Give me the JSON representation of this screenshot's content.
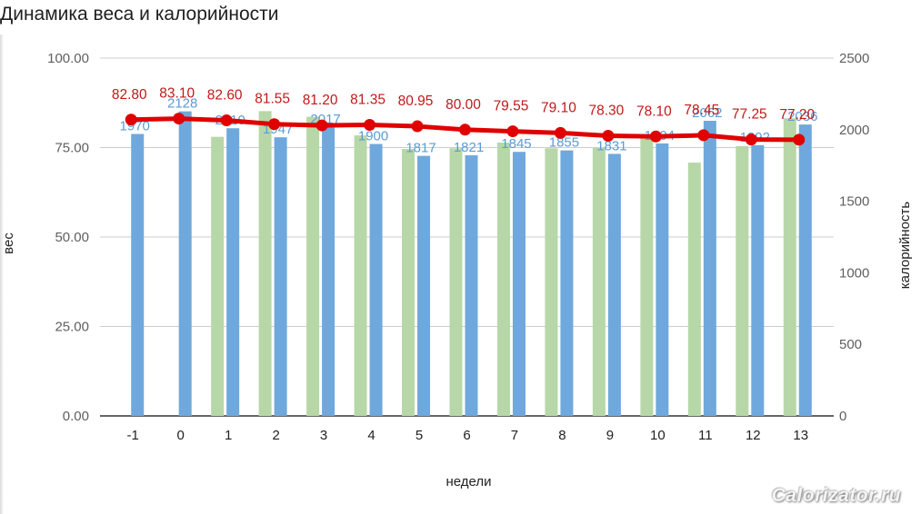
{
  "chart_data": {
    "type": "bar",
    "title": "Динамика веса и калорийности",
    "xlabel": "недели",
    "ylabel": "вес",
    "y2label": "калорийность",
    "categories": [
      "-1",
      "0",
      "1",
      "2",
      "3",
      "4",
      "5",
      "6",
      "7",
      "8",
      "9",
      "10",
      "11",
      "12",
      "13"
    ],
    "ylim": [
      0,
      100
    ],
    "y2lim": [
      0,
      2500
    ],
    "yticks": [
      "0.00",
      "25.00",
      "50.00",
      "75.00",
      "100.00"
    ],
    "y2ticks": [
      "0",
      "500",
      "1000",
      "1500",
      "2000",
      "2500"
    ],
    "colors": {
      "green_bar": "#b7d7a8",
      "blue_bar": "#6fa8dc",
      "line": "#e00000",
      "line_label": "#c21818",
      "blue_label": "#5b9bd5"
    },
    "series": [
      {
        "type": "bar",
        "axis": "right",
        "values": [
          null,
          null,
          1950,
          2130,
          2090,
          1960,
          1865,
          1870,
          1910,
          1870,
          1875,
          1960,
          1770,
          1885,
          2080
        ],
        "labels": [
          "",
          "",
          "",
          "",
          "",
          "",
          "",
          "",
          "",
          "",
          "",
          "",
          "",
          "",
          ""
        ]
      },
      {
        "type": "bar",
        "axis": "right",
        "values": [
          1970,
          2128,
          2010,
          1947,
          2017,
          1900,
          1817,
          1821,
          1845,
          1855,
          1831,
          1904,
          2062,
          1892,
          2036
        ],
        "labels": [
          "1970",
          "2128",
          "2010",
          "1947",
          "2017",
          "1900",
          "1817",
          "1821",
          "1845",
          "1855",
          "1831",
          "1904",
          "2062",
          "1892",
          "2036"
        ]
      },
      {
        "type": "line",
        "axis": "left",
        "values": [
          82.8,
          83.1,
          82.6,
          81.55,
          81.2,
          81.35,
          80.95,
          80.0,
          79.55,
          79.1,
          78.3,
          78.1,
          78.45,
          77.25,
          77.2
        ],
        "labels": [
          "82.80",
          "83.10",
          "82.60",
          "81.55",
          "81.20",
          "81.35",
          "80.95",
          "80.00",
          "79.55",
          "79.10",
          "78.30",
          "78.10",
          "78.45",
          "77.25",
          "77.20"
        ]
      }
    ],
    "grid": true
  },
  "watermark": "Calorizator.ru"
}
